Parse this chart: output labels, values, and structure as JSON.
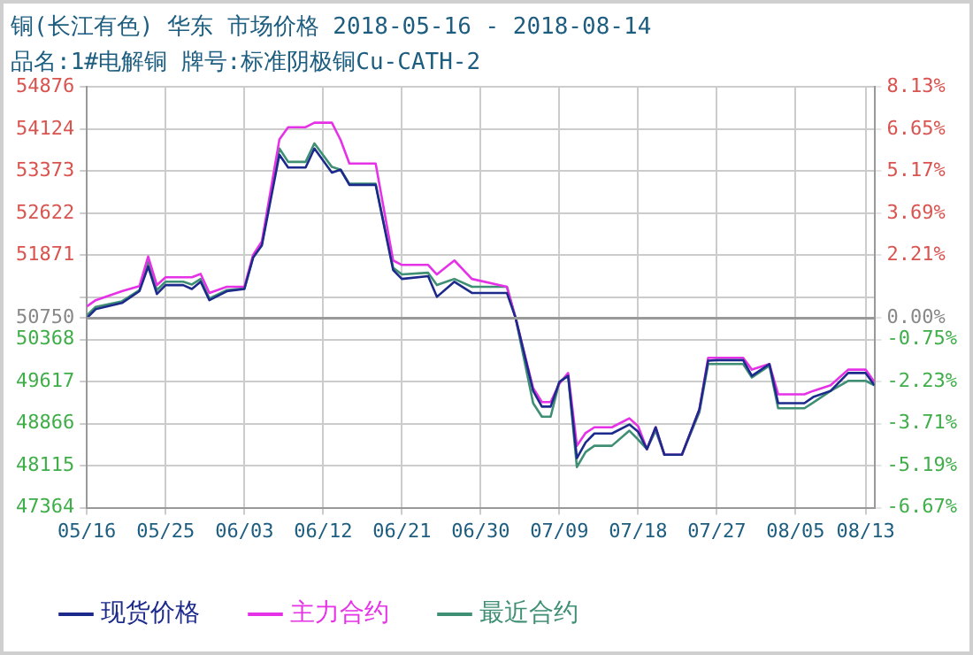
{
  "chart_data": {
    "type": "line",
    "title": "铜(长江有色) 华东 市场价格 2018-05-16 - 2018-08-14",
    "subtitle": "品名:1#电解铜 牌号:标准阴极铜Cu-CATH-2",
    "x": [
      "2018-05-16",
      "2018-05-17",
      "2018-05-20",
      "2018-05-22",
      "2018-05-23",
      "2018-05-24",
      "2018-05-25",
      "2018-05-27",
      "2018-05-28",
      "2018-05-29",
      "2018-05-30",
      "2018-06-01",
      "2018-06-03",
      "2018-06-04",
      "2018-06-05",
      "2018-06-07",
      "2018-06-08",
      "2018-06-10",
      "2018-06-11",
      "2018-06-13",
      "2018-06-14",
      "2018-06-15",
      "2018-06-18",
      "2018-06-20",
      "2018-06-21",
      "2018-06-24",
      "2018-06-25",
      "2018-06-27",
      "2018-06-29",
      "2018-07-03",
      "2018-07-04",
      "2018-07-06",
      "2018-07-07",
      "2018-07-08",
      "2018-07-09",
      "2018-07-10",
      "2018-07-11",
      "2018-07-12",
      "2018-07-13",
      "2018-07-15",
      "2018-07-17",
      "2018-07-18",
      "2018-07-19",
      "2018-07-20",
      "2018-07-21",
      "2018-07-23",
      "2018-07-25",
      "2018-07-26",
      "2018-07-27",
      "2018-07-30",
      "2018-07-31",
      "2018-08-02",
      "2018-08-03",
      "2018-08-06",
      "2018-08-07",
      "2018-08-09",
      "2018-08-11",
      "2018-08-13",
      "2018-08-14"
    ],
    "series": [
      {
        "name": "现货价格",
        "color": "#1c2a8c",
        "values": [
          50750,
          50910,
          51020,
          51230,
          51670,
          51180,
          51340,
          51340,
          51270,
          51400,
          51070,
          51230,
          51270,
          51830,
          52050,
          53670,
          53440,
          53440,
          53780,
          53350,
          53400,
          53130,
          53130,
          51610,
          51450,
          51500,
          51130,
          51400,
          51200,
          51200,
          50750,
          49450,
          49170,
          49170,
          49610,
          49720,
          48250,
          48530,
          48690,
          48690,
          48850,
          48720,
          48410,
          48800,
          48310,
          48310,
          49120,
          49990,
          50000,
          50000,
          49720,
          49930,
          49230,
          49230,
          49340,
          49450,
          49770,
          49770,
          49550
        ]
      },
      {
        "name": "主力合约",
        "color": "#e632e6",
        "values": [
          50960,
          51070,
          51230,
          51320,
          51850,
          51340,
          51480,
          51480,
          51480,
          51540,
          51200,
          51310,
          51310,
          51880,
          52120,
          53940,
          54160,
          54160,
          54240,
          54240,
          53930,
          53510,
          53510,
          51780,
          51700,
          51700,
          51530,
          51780,
          51450,
          51310,
          50750,
          49500,
          49250,
          49250,
          49580,
          49770,
          48470,
          48700,
          48800,
          48800,
          48960,
          48820,
          48410,
          48800,
          48310,
          48310,
          49120,
          50040,
          50040,
          50040,
          49830,
          49930,
          49390,
          49390,
          49450,
          49550,
          49830,
          49830,
          49610
        ]
      },
      {
        "name": "最近合约",
        "color": "#3f8f74",
        "values": [
          50800,
          50950,
          51050,
          51250,
          51750,
          51250,
          51400,
          51400,
          51350,
          51450,
          51100,
          51250,
          51280,
          51850,
          52080,
          53780,
          53540,
          53540,
          53870,
          53450,
          53400,
          53150,
          53150,
          51650,
          51530,
          51560,
          51340,
          51450,
          51310,
          51310,
          50750,
          49230,
          48990,
          48990,
          49610,
          49720,
          48090,
          48360,
          48470,
          48470,
          48740,
          48580,
          48410,
          48740,
          48310,
          48310,
          49070,
          49930,
          49930,
          49930,
          49690,
          49900,
          49140,
          49140,
          49240,
          49450,
          49630,
          49630,
          49550
        ]
      }
    ],
    "xlim": [
      "2018-05-16",
      "2018-08-14"
    ],
    "xticks": [
      {
        "value": "2018-05-16",
        "label": "05/16"
      },
      {
        "value": "2018-05-25",
        "label": "05/25"
      },
      {
        "value": "2018-06-03",
        "label": "06/03"
      },
      {
        "value": "2018-06-12",
        "label": "06/12"
      },
      {
        "value": "2018-06-21",
        "label": "06/21"
      },
      {
        "value": "2018-06-30",
        "label": "06/30"
      },
      {
        "value": "2018-07-09",
        "label": "07/09"
      },
      {
        "value": "2018-07-18",
        "label": "07/18"
      },
      {
        "value": "2018-07-27",
        "label": "07/27"
      },
      {
        "value": "2018-08-05",
        "label": "08/05"
      },
      {
        "value": "2018-08-13",
        "label": "08/13"
      }
    ],
    "ylim": [
      47364,
      54876
    ],
    "yticks": [
      47364,
      48115,
      48866,
      49617,
      50368,
      50750,
      {
        "value": 51120,
        "label": null
      },
      51871,
      52622,
      53373,
      54124,
      54876
    ],
    "y2lim": [
      -6.67,
      8.13
    ],
    "y2ticks": [
      {
        "value": -6.67,
        "label": "-6.67%"
      },
      {
        "value": -5.19,
        "label": "-5.19%"
      },
      {
        "value": -3.71,
        "label": "-3.71%"
      },
      {
        "value": -2.23,
        "label": "-2.23%"
      },
      {
        "value": -0.75,
        "label": "-0.75%"
      },
      {
        "value": 0,
        "label": "0.00%"
      },
      {
        "value": 2.21,
        "label": "2.21%"
      },
      {
        "value": 3.69,
        "label": "3.69%"
      },
      {
        "value": 5.17,
        "label": "5.17%"
      },
      {
        "value": 6.65,
        "label": "6.65%"
      },
      {
        "value": 8.13,
        "label": "8.13%"
      }
    ],
    "ref_lines": [
      {
        "axis": "y",
        "value": 50750,
        "color": "#999999"
      }
    ],
    "grid": true,
    "legend": "bottom left",
    "marker": "none",
    "line_style": "solid"
  }
}
